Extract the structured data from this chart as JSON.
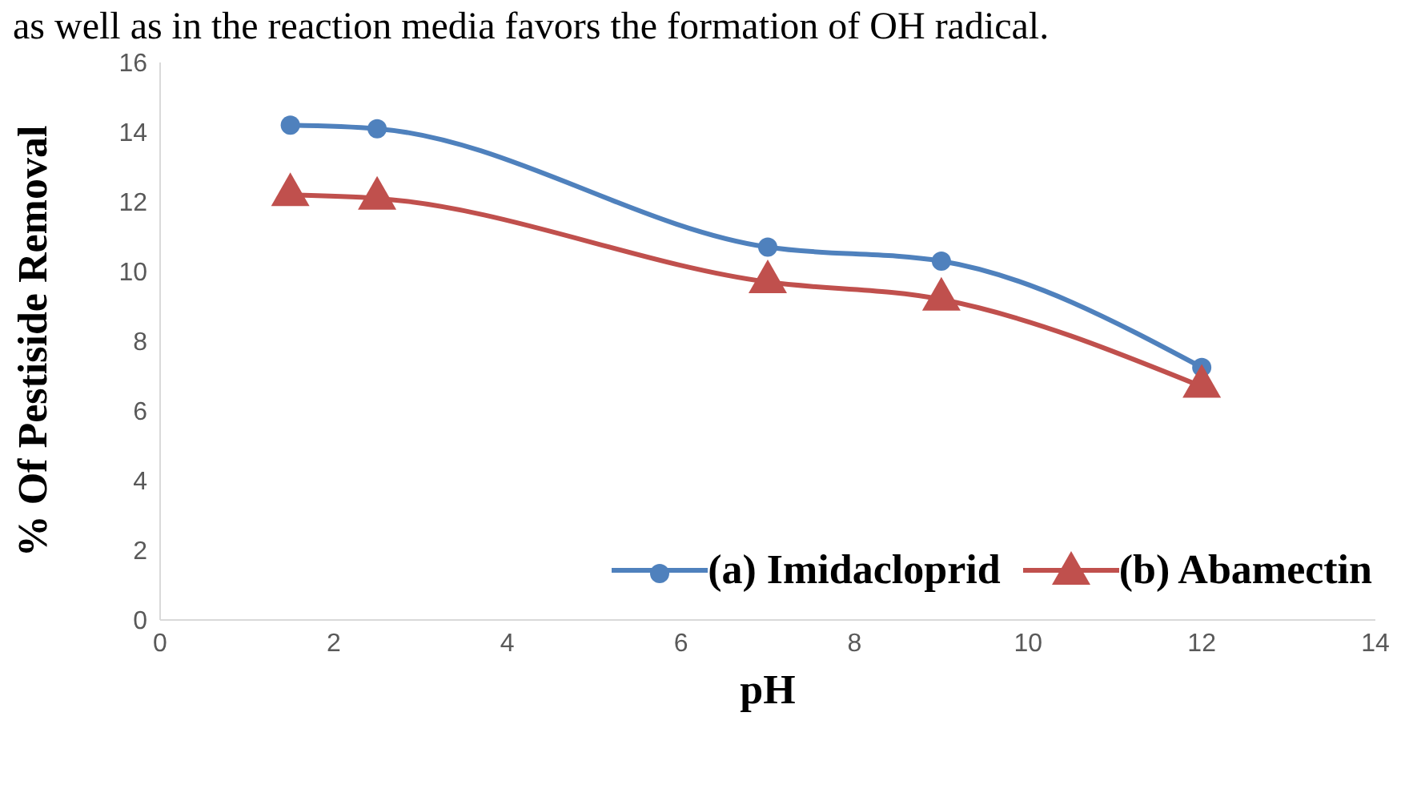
{
  "chart_data": {
    "type": "line",
    "xlabel": "pH",
    "ylabel": "% Of Pestiside Removal",
    "annotations": [
      "as well as in the reaction media favors the formation of OH radical."
    ],
    "x": [
      1.5,
      2.5,
      7,
      9,
      12
    ],
    "series": [
      {
        "name": "(a) Imidacloprid",
        "color": "#4f81bd",
        "marker": "circle",
        "values": [
          14.2,
          14.1,
          10.7,
          10.3,
          7.25
        ]
      },
      {
        "name": "(b) Abamectin",
        "color": "#c0504d",
        "marker": "triangle",
        "values": [
          12.2,
          12.1,
          9.7,
          9.2,
          6.7
        ]
      }
    ],
    "xlim": [
      0,
      14
    ],
    "xticks": [
      0,
      2,
      4,
      6,
      8,
      10,
      12,
      14
    ],
    "ylim": [
      0,
      16
    ],
    "yticks": [
      0,
      2,
      4,
      6,
      8,
      10,
      12,
      14,
      16
    ],
    "grid": false,
    "legend": "bottom right",
    "line_style": "solid"
  }
}
